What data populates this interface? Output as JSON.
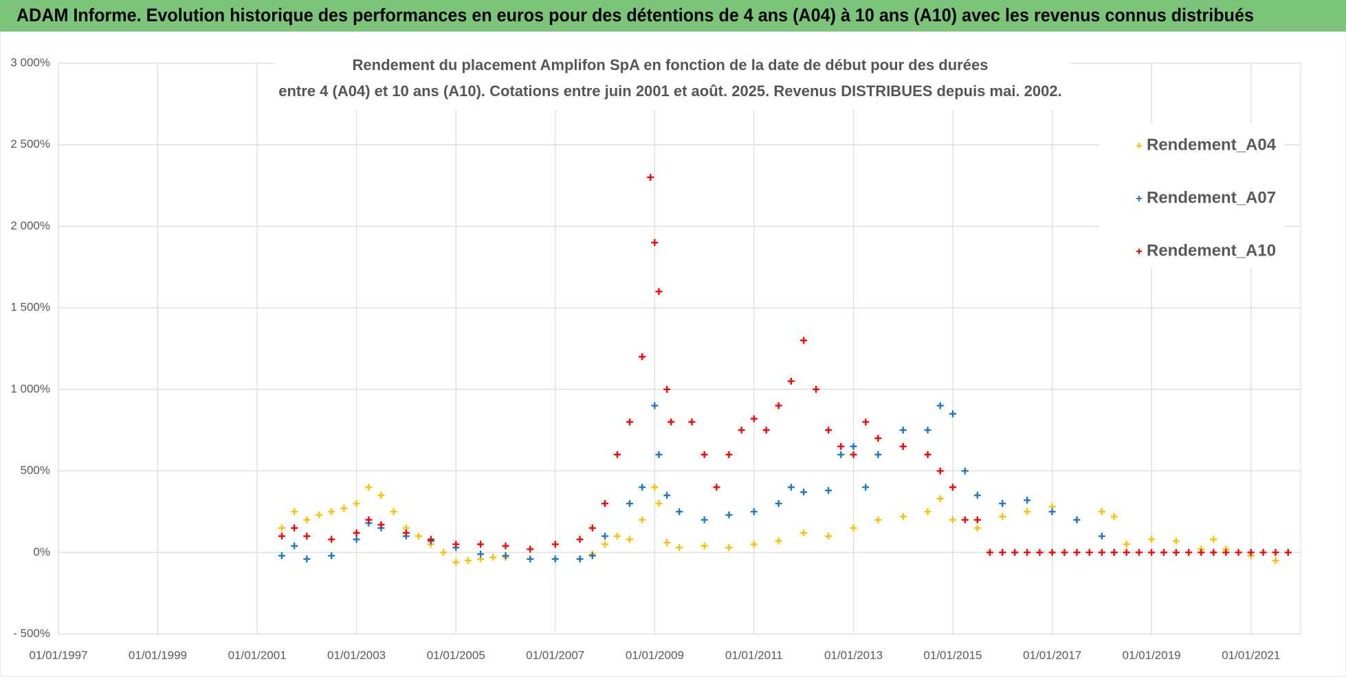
{
  "chart_data": {
    "type": "scatter",
    "title": "ADAM Informe. Evolution historique des performances en euros pour des détentions de 4 ans (A04) à 10 ans (A10) avec les revenus connus distribués",
    "subtitle": [
      "Rendement du placement Amplifon SpA en fonction de la date de début pour des durées",
      "entre 4 (A04) et 10 ans (A10).  Cotations entre juin 2001 et août. 2025.  Revenus DISTRIBUES depuis mai. 2002."
    ],
    "xlim": [
      "1997-01-01",
      "2022-01-01"
    ],
    "xticks": [
      {
        "value": "1997-01-01",
        "label": "01/01/1997"
      },
      {
        "value": "1999-01-01",
        "label": "01/01/1999"
      },
      {
        "value": "2001-01-01",
        "label": "01/01/2001"
      },
      {
        "value": "2003-01-01",
        "label": "01/01/2003"
      },
      {
        "value": "2005-01-01",
        "label": "01/01/2005"
      },
      {
        "value": "2007-01-01",
        "label": "01/01/2007"
      },
      {
        "value": "2009-01-01",
        "label": "01/01/2009"
      },
      {
        "value": "2011-01-01",
        "label": "01/01/2011"
      },
      {
        "value": "2013-01-01",
        "label": "01/01/2013"
      },
      {
        "value": "2015-01-01",
        "label": "01/01/2015"
      },
      {
        "value": "2017-01-01",
        "label": "01/01/2017"
      },
      {
        "value": "2019-01-01",
        "label": "01/01/2019"
      },
      {
        "value": "2021-01-01",
        "label": "01/01/2021"
      }
    ],
    "ylim": [
      -500,
      3000
    ],
    "yticks": [
      {
        "value": -500,
        "label": "- 500%"
      },
      {
        "value": 0,
        "label": "0%"
      },
      {
        "value": 500,
        "label": "500%"
      },
      {
        "value": 1000,
        "label": "1 000%"
      },
      {
        "value": 1500,
        "label": "1 500%"
      },
      {
        "value": 2000,
        "label": "2 000%"
      },
      {
        "value": 2500,
        "label": "2 500%"
      },
      {
        "value": 3000,
        "label": "3 000%"
      }
    ],
    "grid": true,
    "legend": "right",
    "series": [
      {
        "name": "Rendement_A04",
        "color": "#ffc000",
        "x": [
          "2001-07-01",
          "2001-10-01",
          "2002-01-01",
          "2002-04-01",
          "2002-07-01",
          "2002-10-01",
          "2003-01-01",
          "2003-04-01",
          "2003-07-01",
          "2003-10-01",
          "2004-01-01",
          "2004-04-01",
          "2004-07-01",
          "2004-10-01",
          "2005-01-01",
          "2005-04-01",
          "2005-07-01",
          "2005-10-01",
          "2006-01-01",
          "2006-07-01",
          "2007-01-01",
          "2007-07-01",
          "2007-10-01",
          "2008-01-01",
          "2008-04-01",
          "2008-07-01",
          "2008-10-01",
          "2009-01-01",
          "2009-02-01",
          "2009-04-01",
          "2009-07-01",
          "2010-01-01",
          "2010-07-01",
          "2011-01-01",
          "2011-07-01",
          "2012-01-01",
          "2012-07-01",
          "2013-01-01",
          "2013-07-01",
          "2014-01-01",
          "2014-07-01",
          "2014-10-01",
          "2015-01-01",
          "2015-07-01",
          "2016-01-01",
          "2016-07-01",
          "2017-01-01",
          "2017-07-01",
          "2018-01-01",
          "2018-04-01",
          "2018-07-01",
          "2019-01-01",
          "2019-07-01",
          "2020-01-01",
          "2020-04-01",
          "2020-07-01",
          "2021-01-01",
          "2021-07-01"
        ],
        "values": [
          150,
          250,
          200,
          230,
          250,
          270,
          300,
          400,
          350,
          250,
          150,
          100,
          50,
          0,
          -60,
          -50,
          -40,
          -30,
          -30,
          -40,
          -40,
          -40,
          -10,
          50,
          100,
          80,
          200,
          400,
          300,
          60,
          30,
          40,
          30,
          50,
          70,
          120,
          100,
          150,
          200,
          220,
          250,
          330,
          200,
          150,
          220,
          250,
          280,
          200,
          250,
          220,
          50,
          80,
          70,
          20,
          80,
          20,
          -20,
          -50
        ]
      },
      {
        "name": "Rendement_A07",
        "color": "#1f77c4",
        "x": [
          "2001-07-01",
          "2001-10-01",
          "2002-01-01",
          "2002-07-01",
          "2003-01-01",
          "2003-04-01",
          "2003-07-01",
          "2004-01-01",
          "2004-07-01",
          "2005-01-01",
          "2005-07-01",
          "2006-01-01",
          "2006-07-01",
          "2007-01-01",
          "2007-07-01",
          "2007-10-01",
          "2008-01-01",
          "2008-07-01",
          "2008-10-01",
          "2009-01-01",
          "2009-02-01",
          "2009-04-01",
          "2009-07-01",
          "2010-01-01",
          "2010-07-01",
          "2011-01-01",
          "2011-07-01",
          "2011-10-01",
          "2012-01-01",
          "2012-07-01",
          "2012-10-01",
          "2013-01-01",
          "2013-04-01",
          "2013-07-01",
          "2014-01-01",
          "2014-07-01",
          "2014-10-01",
          "2015-01-01",
          "2015-04-01",
          "2015-07-01",
          "2016-01-01",
          "2016-07-01",
          "2017-01-01",
          "2017-07-01",
          "2018-01-01",
          "2018-04-01"
        ],
        "values": [
          -20,
          40,
          -40,
          -20,
          80,
          180,
          150,
          100,
          70,
          30,
          -10,
          -20,
          -40,
          -40,
          -40,
          -20,
          100,
          300,
          400,
          900,
          600,
          350,
          250,
          200,
          230,
          250,
          300,
          400,
          370,
          380,
          600,
          650,
          400,
          600,
          750,
          750,
          900,
          850,
          500,
          350,
          300,
          320,
          250,
          200,
          100,
          0
        ]
      },
      {
        "name": "Rendement_A10",
        "color": "#ff0000",
        "x": [
          "2001-07-01",
          "2001-10-01",
          "2002-01-01",
          "2002-07-01",
          "2003-01-01",
          "2003-04-01",
          "2003-07-01",
          "2004-01-01",
          "2004-07-01",
          "2005-01-01",
          "2005-07-01",
          "2006-01-01",
          "2006-07-01",
          "2007-01-01",
          "2007-07-01",
          "2007-10-01",
          "2008-01-01",
          "2008-04-01",
          "2008-07-01",
          "2008-10-01",
          "2008-12-01",
          "2009-01-01",
          "2009-02-01",
          "2009-04-01",
          "2009-05-01",
          "2009-10-01",
          "2010-01-01",
          "2010-04-01",
          "2010-07-01",
          "2010-10-01",
          "2011-01-01",
          "2011-04-01",
          "2011-07-01",
          "2011-10-01",
          "2012-01-01",
          "2012-04-01",
          "2012-07-01",
          "2012-10-01",
          "2013-01-01",
          "2013-04-01",
          "2013-07-01",
          "2014-01-01",
          "2014-07-01",
          "2014-10-01",
          "2015-01-01",
          "2015-04-01",
          "2015-07-01",
          "2015-10-01",
          "2016-01-01",
          "2016-04-01",
          "2016-07-01",
          "2016-10-01",
          "2017-01-01",
          "2017-04-01",
          "2017-07-01",
          "2017-10-01",
          "2018-01-01",
          "2018-04-01",
          "2018-07-01",
          "2018-10-01",
          "2019-01-01",
          "2019-04-01",
          "2019-07-01",
          "2019-10-01",
          "2020-01-01",
          "2020-04-01",
          "2020-07-01",
          "2020-10-01",
          "2021-01-01",
          "2021-04-01",
          "2021-07-01",
          "2021-10-01"
        ],
        "values": [
          100,
          150,
          100,
          80,
          120,
          200,
          170,
          120,
          80,
          50,
          50,
          40,
          20,
          50,
          80,
          150,
          300,
          600,
          800,
          1200,
          2300,
          1900,
          1600,
          1000,
          800,
          800,
          600,
          400,
          600,
          750,
          820,
          750,
          900,
          1050,
          1300,
          1000,
          750,
          650,
          600,
          800,
          700,
          650,
          600,
          500,
          400,
          200,
          200,
          0,
          0,
          0,
          0,
          0,
          0,
          0,
          0,
          0,
          0,
          0,
          0,
          0,
          0,
          0,
          0,
          0,
          0,
          0,
          0,
          0,
          0,
          0,
          0,
          0
        ]
      }
    ]
  }
}
